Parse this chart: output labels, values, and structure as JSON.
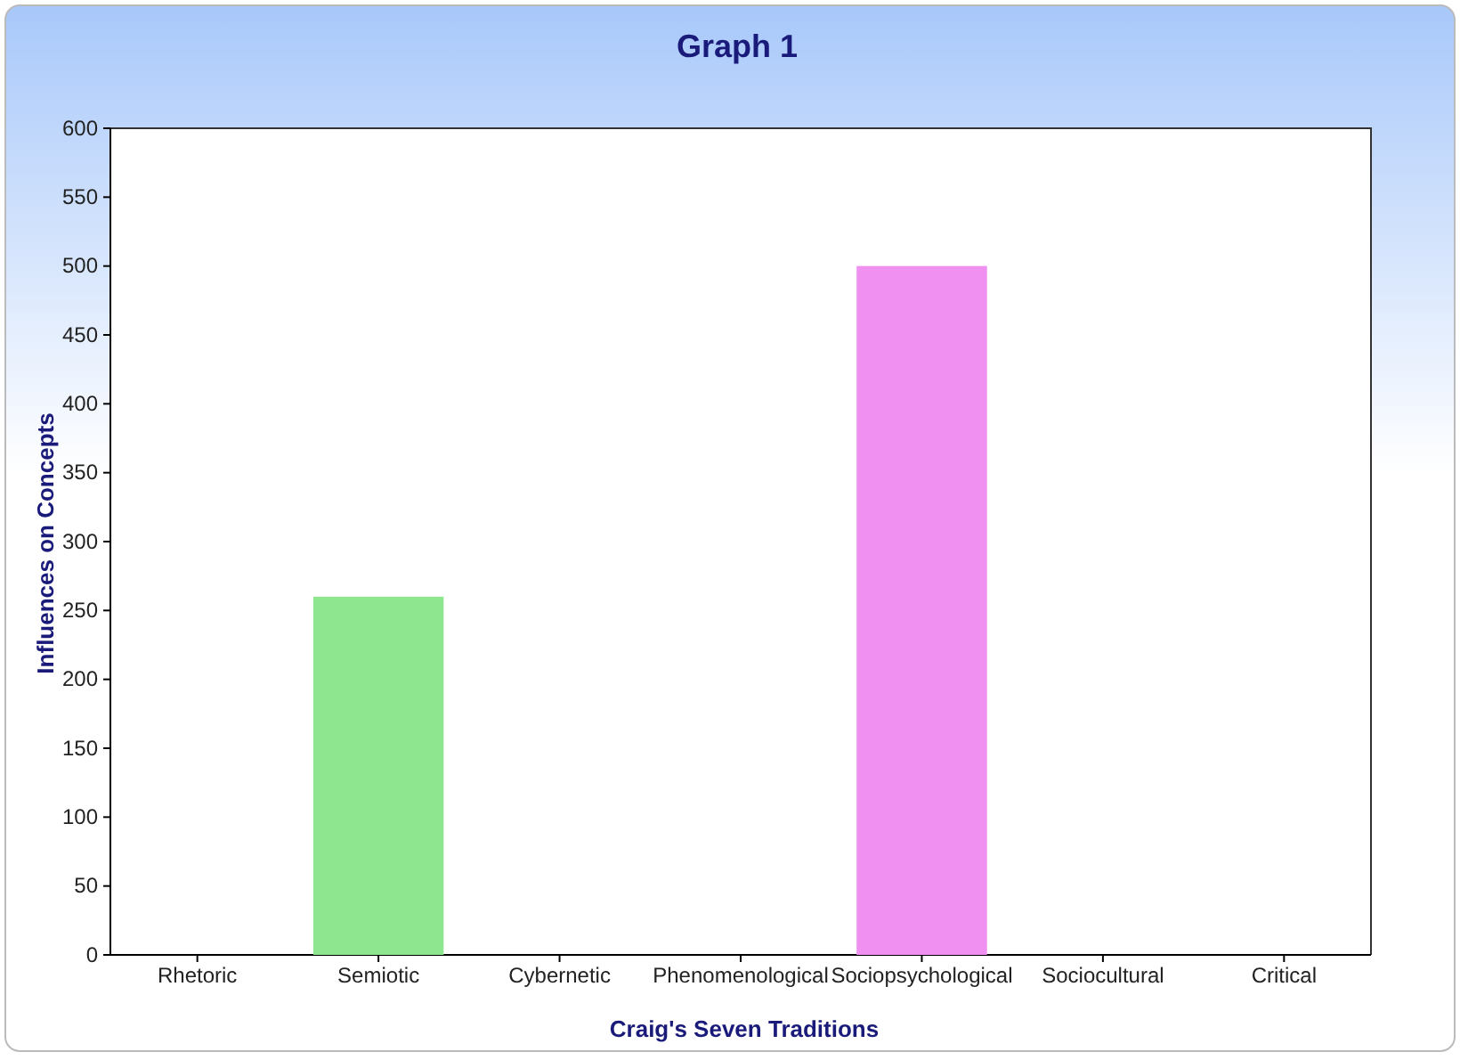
{
  "chart_data": {
    "type": "bar",
    "title": "Graph 1",
    "xlabel": "Craig's Seven Traditions",
    "ylabel": "Influences on Concepts",
    "categories": [
      "Rhetoric",
      "Semiotic",
      "Cybernetic",
      "Phenomenological",
      "Sociopsychological",
      "Sociocultural",
      "Critical"
    ],
    "values": [
      0,
      260,
      0,
      0,
      500,
      0,
      0
    ],
    "colors": [
      "#f07070",
      "#8ee68e",
      "#7070ee",
      "#f4f480",
      "#f090f0",
      "#b8f4f4",
      "#f4d070"
    ],
    "ylim": [
      0,
      600
    ],
    "yticks": [
      0,
      50,
      100,
      150,
      200,
      250,
      300,
      350,
      400,
      450,
      500,
      550,
      600
    ],
    "grid": false
  }
}
